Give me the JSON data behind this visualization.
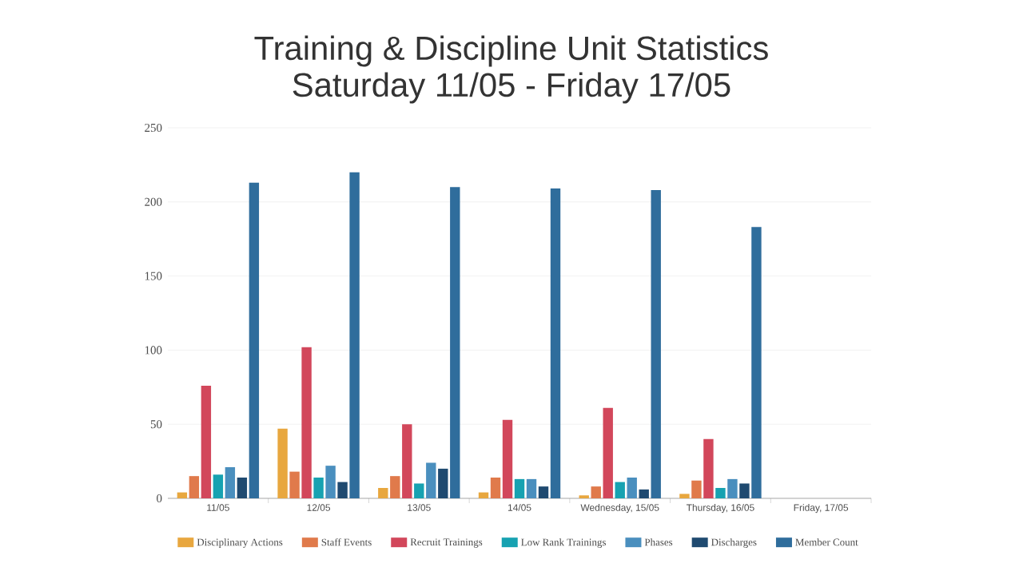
{
  "chart_data": {
    "type": "bar",
    "title": "Training & Discipline Unit Statistics",
    "subtitle": "Saturday 11/05 - Friday 17/05",
    "categories": [
      "11/05",
      "12/05",
      "13/05",
      "14/05",
      "Wednesday, 15/05",
      "Thursday, 16/05",
      "Friday, 17/05"
    ],
    "series": [
      {
        "name": "Disciplinary Actions",
        "color": "#e8a73f",
        "values": [
          4,
          47,
          7,
          4,
          2,
          3,
          null
        ]
      },
      {
        "name": "Staff Events",
        "color": "#e07a4b",
        "values": [
          15,
          18,
          15,
          14,
          8,
          12,
          null
        ]
      },
      {
        "name": "Recruit Trainings",
        "color": "#d2475b",
        "values": [
          76,
          102,
          50,
          53,
          61,
          40,
          null
        ]
      },
      {
        "name": "Low Rank Trainings",
        "color": "#17a2b1",
        "values": [
          16,
          14,
          10,
          13,
          11,
          7,
          null
        ]
      },
      {
        "name": "Phases",
        "color": "#4a8fbe",
        "values": [
          21,
          22,
          24,
          13,
          14,
          13,
          null
        ]
      },
      {
        "name": "Discharges",
        "color": "#1f4a70",
        "values": [
          14,
          11,
          20,
          8,
          6,
          10,
          null
        ]
      },
      {
        "name": "Member Count",
        "color": "#2f6d9c",
        "values": [
          213,
          220,
          210,
          209,
          208,
          183,
          null
        ]
      }
    ],
    "ylim": [
      0,
      250
    ],
    "yticks": [
      0,
      50,
      100,
      150,
      200,
      250
    ],
    "grid": "y",
    "legend": "bottom"
  }
}
